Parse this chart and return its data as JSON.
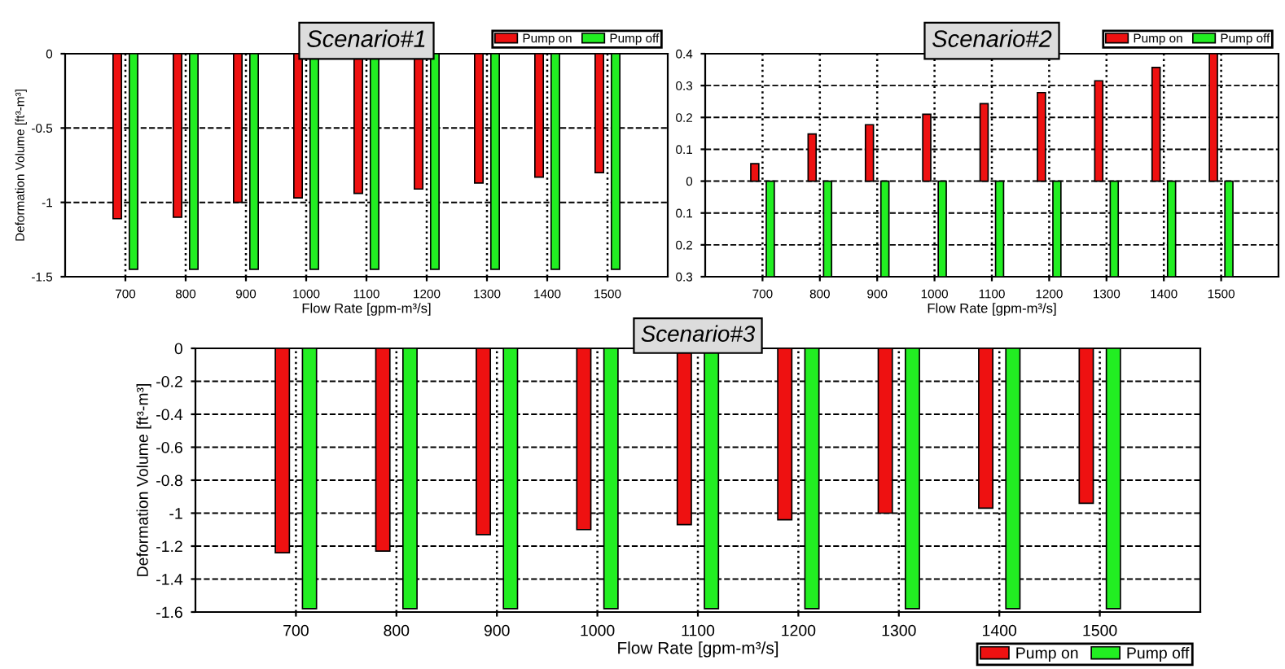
{
  "chart_data": [
    {
      "type": "bar",
      "title": "Scenario#1",
      "xlabel": "Flow Rate [gpm-m³/s]",
      "ylabel": "Deformation Volume [ft³-m³]",
      "x": [
        700,
        800,
        900,
        1000,
        1100,
        1200,
        1300,
        1400,
        1500
      ],
      "series": [
        {
          "name": "Pump on",
          "color": "#ee1111",
          "values": [
            -1.11,
            -1.1,
            -1.0,
            -0.97,
            -0.94,
            -0.91,
            -0.87,
            -0.83,
            -0.8
          ]
        },
        {
          "name": "Pump off",
          "color": "#22ee22",
          "values": [
            -1.45,
            -1.45,
            -1.45,
            -1.45,
            -1.45,
            -1.45,
            -1.45,
            -1.45,
            -1.45
          ]
        }
      ],
      "xlim": [
        600,
        1600
      ],
      "xticks": [
        700,
        800,
        900,
        1000,
        1100,
        1200,
        1300,
        1400,
        1500
      ],
      "ylim": [
        -1.5,
        0
      ],
      "yticks": [
        -1.5,
        -1,
        -0.5,
        0
      ],
      "grid": true,
      "legend": "top right"
    },
    {
      "type": "bar",
      "title": "Scenario#2",
      "xlabel": "Flow Rate [gpm-m³/s]",
      "x": [
        700,
        800,
        900,
        1000,
        1100,
        1200,
        1300,
        1400,
        1500
      ],
      "series": [
        {
          "name": "Pump on",
          "color": "#ee1111",
          "values": [
            0.055,
            0.148,
            0.177,
            0.21,
            0.243,
            0.278,
            0.315,
            0.357,
            0.4
          ]
        },
        {
          "name": "Pump off",
          "color": "#22ee22",
          "values": [
            -0.3,
            -0.3,
            -0.3,
            -0.3,
            -0.3,
            -0.3,
            -0.3,
            -0.3,
            -0.3
          ]
        }
      ],
      "xlim": [
        600,
        1600
      ],
      "xticks": [
        700,
        800,
        900,
        1000,
        1100,
        1200,
        1300,
        1400,
        1500
      ],
      "ylim": [
        -0.3,
        0.4
      ],
      "yticks": [
        {
          "value": -0.3,
          "label": "0.3"
        },
        {
          "value": -0.2,
          "label": "0.2"
        },
        {
          "value": -0.1,
          "label": "0.1"
        },
        0,
        0.1,
        0.2,
        0.3,
        0.4
      ],
      "grid": true,
      "legend": "top right"
    },
    {
      "type": "bar",
      "title": "Scenario#3",
      "xlabel": "Flow Rate [gpm-m³/s]",
      "ylabel": "Deformation Volume [ft³-m³]",
      "x": [
        700,
        800,
        900,
        1000,
        1100,
        1200,
        1300,
        1400,
        1500
      ],
      "series": [
        {
          "name": "Pump on",
          "color": "#ee1111",
          "values": [
            -1.24,
            -1.23,
            -1.13,
            -1.1,
            -1.07,
            -1.04,
            -1.0,
            -0.97,
            -0.94
          ]
        },
        {
          "name": "Pump off",
          "color": "#22ee22",
          "values": [
            -1.58,
            -1.58,
            -1.58,
            -1.58,
            -1.58,
            -1.58,
            -1.58,
            -1.58,
            -1.58
          ]
        }
      ],
      "xlim": [
        600,
        1600
      ],
      "xticks": [
        700,
        800,
        900,
        1000,
        1100,
        1200,
        1300,
        1400,
        1500
      ],
      "ylim": [
        -1.6,
        0
      ],
      "yticks": [
        -1.6,
        -1.4,
        -1.2,
        -1,
        -0.8,
        -0.6,
        -0.4,
        -0.2,
        0
      ],
      "grid": true,
      "legend": "bottom right"
    }
  ]
}
